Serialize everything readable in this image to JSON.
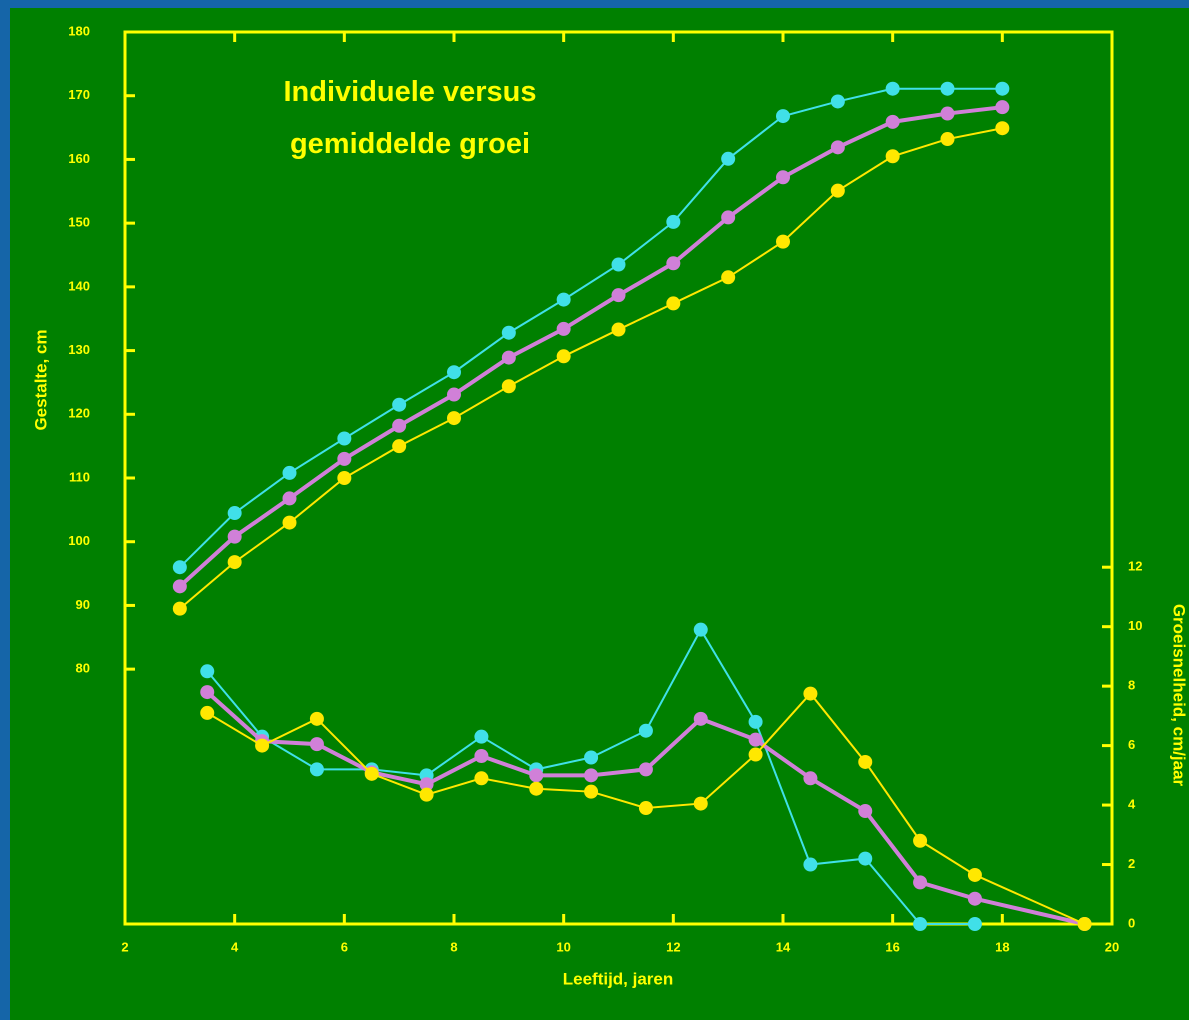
{
  "chart_data": {
    "type": "line",
    "title": "Individuele versus gemiddelde groei",
    "xlabel": "Leeftijd, jaren",
    "ylabel": "Gestalte, cm",
    "y2label": "Groeisnelheid, cm/jaar",
    "xlim": [
      2,
      20
    ],
    "xticks": [
      2,
      4,
      6,
      8,
      10,
      12,
      14,
      16,
      18,
      20
    ],
    "ylim": [
      40,
      180
    ],
    "yticks": [
      80,
      90,
      100,
      110,
      120,
      130,
      140,
      150,
      160,
      170,
      180
    ],
    "y2lim": [
      0,
      30
    ],
    "y2ticks": [
      0,
      2,
      4,
      6,
      8,
      10,
      12
    ],
    "axis_color": "#ffff00",
    "series": [
      {
        "color": "#40e0e8",
        "axis": "y",
        "x": [
          3,
          4,
          5,
          6,
          7,
          8,
          9,
          10,
          11,
          12,
          13,
          14,
          15,
          16,
          17,
          18
        ],
        "values": [
          96,
          104.5,
          110.8,
          116.2,
          121.5,
          126.6,
          132.8,
          138,
          143.5,
          150.2,
          160.1,
          166.8,
          169.1,
          171.1,
          171.1,
          171.1
        ]
      },
      {
        "color": "#d080d8",
        "axis": "y",
        "x": [
          3,
          4,
          5,
          6,
          7,
          8,
          9,
          10,
          11,
          12,
          13,
          14,
          15,
          16,
          17,
          18
        ],
        "values": [
          93,
          100.8,
          106.8,
          113,
          118.2,
          123.1,
          128.9,
          133.4,
          138.7,
          143.7,
          150.9,
          157.2,
          161.9,
          165.9,
          167.2,
          168.2
        ]
      },
      {
        "color": "#ffe800",
        "axis": "y",
        "x": [
          3,
          4,
          5,
          6,
          7,
          8,
          9,
          10,
          11,
          12,
          13,
          14,
          15,
          16,
          17,
          18
        ],
        "values": [
          89.5,
          96.8,
          103,
          110,
          115,
          119.4,
          124.4,
          129.1,
          133.3,
          137.4,
          141.5,
          147.1,
          155.1,
          160.5,
          163.2,
          164.9
        ]
      },
      {
        "color": "#40e0e8",
        "axis": "y2",
        "x": [
          3.5,
          4.5,
          5.5,
          6.5,
          7.5,
          8.5,
          9.5,
          10.5,
          11.5,
          12.5,
          13.5,
          14.5,
          15.5,
          16.5,
          17.5
        ],
        "values": [
          8.5,
          6.3,
          5.2,
          5.2,
          5.0,
          6.3,
          5.2,
          5.6,
          6.5,
          9.9,
          6.8,
          2.0,
          2.2,
          0,
          0
        ]
      },
      {
        "color": "#d080d8",
        "axis": "y2",
        "x": [
          3.5,
          4.5,
          5.5,
          6.5,
          7.5,
          8.5,
          9.5,
          10.5,
          11.5,
          12.5,
          13.5,
          14.5,
          15.5,
          16.5,
          17.5,
          19.5
        ],
        "values": [
          7.8,
          6.15,
          6.05,
          5.1,
          4.7,
          5.65,
          5.0,
          5.0,
          5.2,
          6.9,
          6.2,
          4.9,
          3.8,
          1.4,
          0.85,
          0
        ]
      },
      {
        "color": "#ffe800",
        "axis": "y2",
        "x": [
          3.5,
          4.5,
          5.5,
          6.5,
          7.5,
          8.5,
          9.5,
          10.5,
          11.5,
          12.5,
          13.5,
          14.5,
          15.5,
          16.5,
          17.5,
          19.5
        ],
        "values": [
          7.1,
          6.0,
          6.9,
          5.05,
          4.35,
          4.9,
          4.55,
          4.45,
          3.9,
          4.05,
          5.7,
          7.75,
          5.45,
          2.8,
          1.65,
          0
        ]
      }
    ]
  }
}
